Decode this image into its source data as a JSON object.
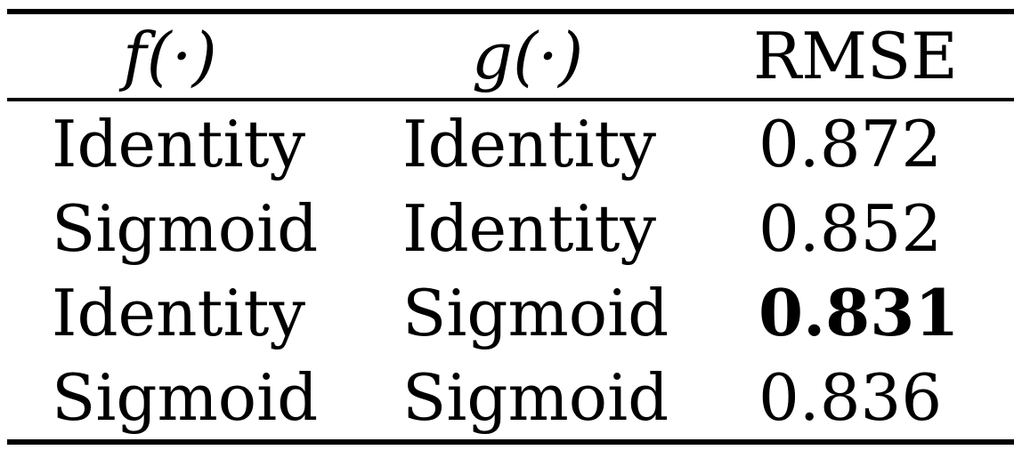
{
  "table": {
    "headers": [
      "f(·)",
      "g(·)",
      "RMSE"
    ],
    "rows": [
      {
        "f": "Identity",
        "g": "Identity",
        "rmse": "0.872",
        "best": false
      },
      {
        "f": "Sigmoid",
        "g": "Identity",
        "rmse": "0.852",
        "best": false
      },
      {
        "f": "Identity",
        "g": "Sigmoid",
        "rmse": "0.831",
        "best": true
      },
      {
        "f": "Sigmoid",
        "g": "Sigmoid",
        "rmse": "0.836",
        "best": false
      }
    ]
  }
}
